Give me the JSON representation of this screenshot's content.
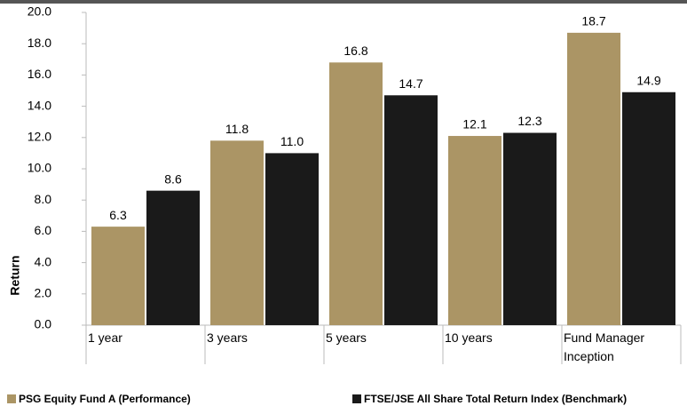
{
  "chart_data": {
    "type": "bar",
    "y_label": "Return",
    "categories": [
      "1 year",
      "3 years",
      "5 years",
      "10 years",
      "Fund Manager Inception"
    ],
    "series": [
      {
        "name": "PSG Equity Fund A (Performance)",
        "color": "#ab9565",
        "values": [
          6.3,
          11.8,
          16.8,
          12.1,
          18.7
        ],
        "value_labels": [
          "6.3",
          "11.8",
          "16.8",
          "12.1",
          "18.7"
        ]
      },
      {
        "name": "FTSE/JSE All Share Total Return Index (Benchmark)",
        "color": "#1a1a1a",
        "values": [
          8.6,
          11.0,
          14.7,
          12.3,
          14.9
        ],
        "value_labels": [
          "8.6",
          "11.0",
          "14.7",
          "12.3",
          "14.9"
        ]
      }
    ],
    "ylim": [
      0,
      20
    ],
    "yticks": [
      {
        "value": 0,
        "label": "0.0"
      },
      {
        "value": 2,
        "label": "2.0"
      },
      {
        "value": 4,
        "label": "4.0"
      },
      {
        "value": 6,
        "label": "6.0"
      },
      {
        "value": 8,
        "label": "8.0"
      },
      {
        "value": 10,
        "label": "10.0"
      },
      {
        "value": 12,
        "label": "12.0"
      },
      {
        "value": 14,
        "label": "14.0"
      },
      {
        "value": 16,
        "label": "16.0"
      },
      {
        "value": 18,
        "label": "18.0"
      },
      {
        "value": 20,
        "label": "20.0"
      }
    ],
    "legend": "bottom"
  }
}
